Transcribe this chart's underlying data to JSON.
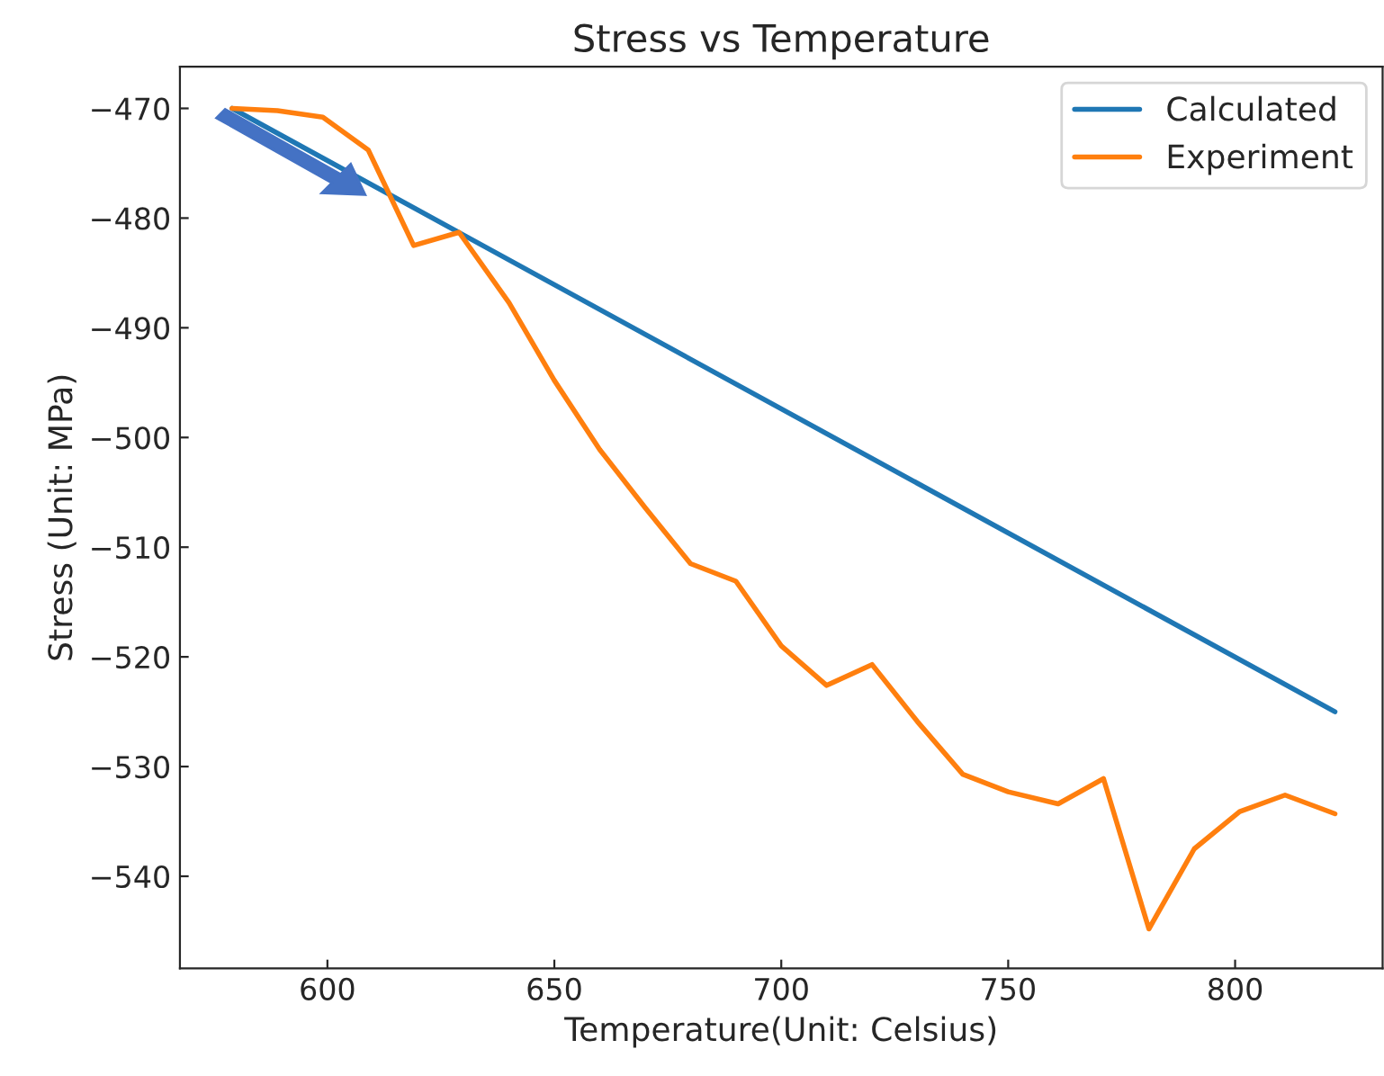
{
  "chart_data": {
    "type": "line",
    "title": "Stress vs Temperature",
    "xlabel": "Temperature(Unit: Celsius)",
    "ylabel": "Stress (Unit: MPa)",
    "xlim": [
      567.5,
      832.5
    ],
    "ylim": [
      -548.4,
      -466.2
    ],
    "xticks": [
      600,
      650,
      700,
      750,
      800
    ],
    "yticks": [
      -540,
      -530,
      -520,
      -510,
      -500,
      -490,
      -480,
      -470
    ],
    "grid": false,
    "legend": "top right",
    "line_style": "solid",
    "marker": "none",
    "series": [
      {
        "name": "Calculated",
        "color": "#1f77b4",
        "x": [
          579,
          822
        ],
        "values": [
          -470,
          -525
        ]
      },
      {
        "name": "Experiment",
        "color": "#ff7f0e",
        "x": [
          579,
          589,
          599,
          609,
          619,
          629,
          640,
          650,
          660,
          670,
          680,
          690,
          700,
          710,
          720,
          730,
          740,
          750,
          761,
          771,
          781,
          791,
          801,
          811,
          822
        ],
        "values": [
          -470,
          -470.2,
          -470.8,
          -473.8,
          -482.5,
          -481.3,
          -487.7,
          -494.8,
          -501.1,
          -506.4,
          -511.5,
          -513.1,
          -519,
          -522.6,
          -520.7,
          -525.9,
          -530.7,
          -532.3,
          -533.4,
          -531.1,
          -544.8,
          -537.5,
          -534.1,
          -532.6,
          -534.3
        ]
      }
    ]
  }
}
